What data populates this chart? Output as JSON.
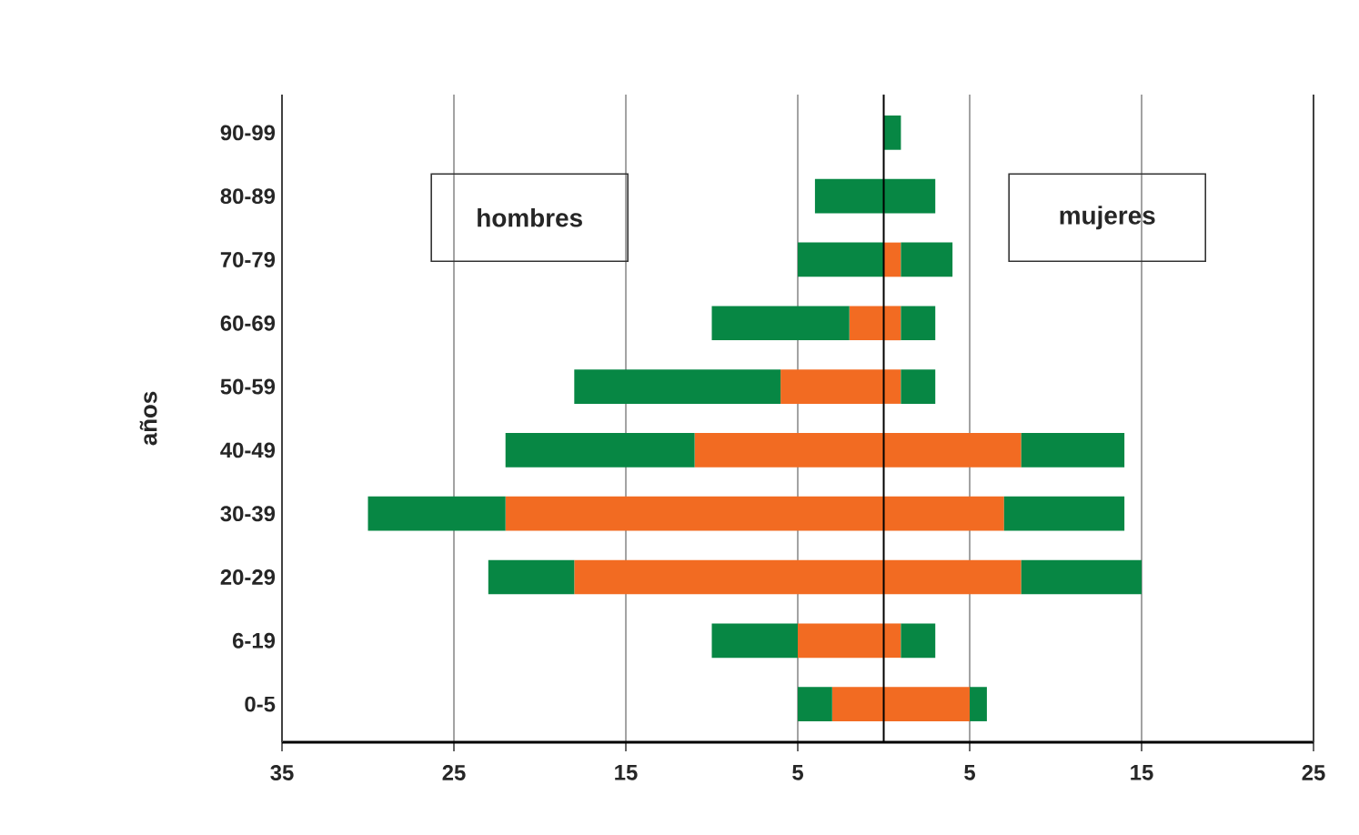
{
  "chart_data": {
    "type": "bar",
    "orientation": "horizontal",
    "stacked": true,
    "ylabel": "años",
    "categories": [
      "90-99",
      "80-89",
      "70-79",
      "60-69",
      "50-59",
      "40-49",
      "30-39",
      "20-29",
      "6-19",
      "0-5"
    ],
    "series": [
      {
        "color": "#f26b22",
        "values": [
          null,
          null,
          null,
          -2,
          -6,
          -11,
          -22,
          -18,
          -5,
          -3
        ]
      },
      {
        "color": "#078744",
        "values": [
          null,
          -4,
          -5,
          -8,
          -12,
          -11,
          -8,
          -5,
          -5,
          -2
        ]
      },
      {
        "color": "#f26b22",
        "values": [
          null,
          null,
          1,
          1,
          1,
          8,
          7,
          8,
          1,
          5
        ]
      },
      {
        "color": "#078744",
        "values": [
          1,
          3,
          3,
          2,
          2,
          6,
          7,
          7,
          2,
          1
        ]
      }
    ],
    "xlim": [
      -35,
      25
    ],
    "xticks": [
      {
        "value": -35,
        "label": "35"
      },
      {
        "value": -25,
        "label": "25"
      },
      {
        "value": -15,
        "label": "15"
      },
      {
        "value": -5,
        "label": "5"
      },
      5,
      15,
      25
    ],
    "grid": "x",
    "ref_lines": [
      {
        "axis": "x",
        "value": 0,
        "color": "#000000"
      }
    ],
    "annotations": [
      "hombres",
      "mujeres"
    ]
  }
}
